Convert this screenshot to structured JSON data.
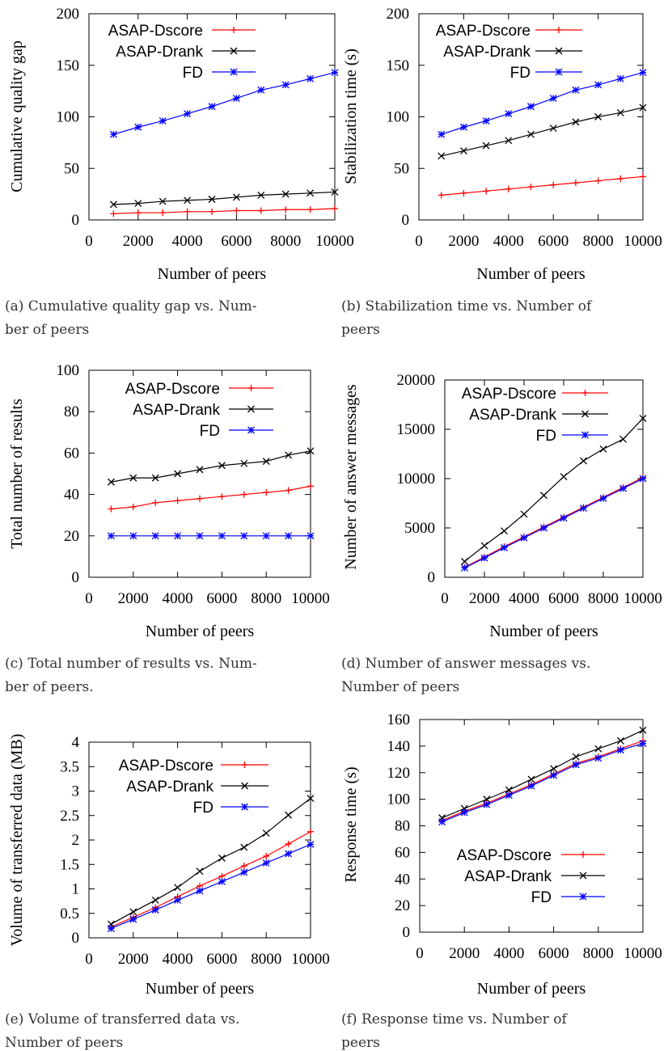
{
  "colors": {
    "ASAP-Dscore": "#ff0000",
    "ASAP-Drank": "#000000",
    "FD": "#0000ff",
    "markers": {
      "ASAP-Dscore": "plus",
      "ASAP-Drank": "cross",
      "FD": "star"
    }
  },
  "chart_data": [
    {
      "type": "line",
      "xlabel": "Number of peers",
      "ylabel": "Cumulative quality gap",
      "xlim": [
        0,
        10000
      ],
      "ylim": [
        0,
        200
      ],
      "xticks": [
        "0",
        "2000",
        "4000",
        "6000",
        "8000",
        "10000"
      ],
      "yticks": [
        "0",
        "50",
        "100",
        "150",
        "200"
      ],
      "legend": "top-left",
      "x": [
        1000,
        2000,
        3000,
        4000,
        5000,
        6000,
        7000,
        8000,
        9000,
        10000
      ],
      "series": [
        {
          "name": "ASAP-Dscore",
          "values": [
            6,
            7,
            7,
            8,
            8,
            9,
            9,
            10,
            10,
            11
          ]
        },
        {
          "name": "ASAP-Drank",
          "values": [
            15,
            16,
            18,
            19,
            20,
            22,
            24,
            25,
            26,
            27
          ]
        },
        {
          "name": "FD",
          "values": [
            83,
            90,
            96,
            103,
            110,
            118,
            126,
            131,
            137,
            143
          ]
        }
      ],
      "caption": [
        "(a) Cumulative quality gap vs. Num-",
        "ber of peers"
      ]
    },
    {
      "type": "line",
      "xlabel": "Number of peers",
      "ylabel": "Stabilization time (s)",
      "xlim": [
        0,
        10000
      ],
      "ylim": [
        0,
        200
      ],
      "xticks": [
        "0",
        "2000",
        "4000",
        "6000",
        "8000",
        "10000"
      ],
      "yticks": [
        "0",
        "50",
        "100",
        "150",
        "200"
      ],
      "legend": "top-left",
      "x": [
        1000,
        2000,
        3000,
        4000,
        5000,
        6000,
        7000,
        8000,
        9000,
        10000
      ],
      "series": [
        {
          "name": "ASAP-Dscore",
          "values": [
            24,
            26,
            28,
            30,
            32,
            34,
            36,
            38,
            40,
            42
          ]
        },
        {
          "name": "ASAP-Drank",
          "values": [
            62,
            67,
            72,
            77,
            83,
            89,
            95,
            100,
            104,
            109
          ]
        },
        {
          "name": "FD",
          "values": [
            83,
            90,
            96,
            103,
            110,
            118,
            126,
            131,
            137,
            143
          ]
        }
      ],
      "caption": [
        "(b) Stabilization time vs. Number of",
        "peers"
      ]
    },
    {
      "type": "line",
      "xlabel": "Number of peers",
      "ylabel": "Total number of results",
      "xlim": [
        0,
        10000
      ],
      "ylim": [
        0,
        100
      ],
      "xticks": [
        "0",
        "2000",
        "4000",
        "6000",
        "8000",
        "10000"
      ],
      "yticks": [
        "0",
        "20",
        "40",
        "60",
        "80",
        "100"
      ],
      "legend": "top-right",
      "x": [
        1000,
        2000,
        3000,
        4000,
        5000,
        6000,
        7000,
        8000,
        9000,
        10000
      ],
      "series": [
        {
          "name": "ASAP-Dscore",
          "values": [
            33,
            34,
            36,
            37,
            38,
            39,
            40,
            41,
            42,
            44
          ]
        },
        {
          "name": "ASAP-Drank",
          "values": [
            46,
            48,
            48,
            50,
            52,
            54,
            55,
            56,
            59,
            61
          ]
        },
        {
          "name": "FD",
          "values": [
            20,
            20,
            20,
            20,
            20,
            20,
            20,
            20,
            20,
            20
          ]
        }
      ],
      "caption": [
        "(c) Total number of results vs. Num-",
        "ber of peers."
      ]
    },
    {
      "type": "line",
      "xlabel": "Number of peers",
      "ylabel": "Number of answer messages",
      "xlim": [
        0,
        10000
      ],
      "ylim": [
        0,
        20000
      ],
      "xticks": [
        "0",
        "2000",
        "4000",
        "6000",
        "8000",
        "10000"
      ],
      "yticks": [
        "0",
        "5000",
        "10000",
        "15000",
        "20000"
      ],
      "legend": "top-left",
      "x": [
        1000,
        2000,
        3000,
        4000,
        5000,
        6000,
        7000,
        8000,
        9000,
        10000
      ],
      "series": [
        {
          "name": "ASAP-Dscore",
          "values": [
            1000,
            2050,
            3100,
            4100,
            5100,
            6100,
            7100,
            8100,
            9100,
            10100
          ]
        },
        {
          "name": "ASAP-Drank",
          "values": [
            1600,
            3200,
            4700,
            6400,
            8300,
            10200,
            11800,
            13000,
            14000,
            16100
          ]
        },
        {
          "name": "FD",
          "values": [
            950,
            1950,
            3000,
            4000,
            5000,
            6000,
            7000,
            8000,
            9000,
            10000
          ]
        }
      ],
      "caption": [
        "(d) Number of answer messages vs.",
        "Number of peers"
      ]
    },
    {
      "type": "line",
      "xlabel": "Number of peers",
      "ylabel": "Volume of transferred data (MB)",
      "xlim": [
        0,
        10000
      ],
      "ylim": [
        0,
        4
      ],
      "xticks": [
        "0",
        "2000",
        "4000",
        "6000",
        "8000",
        "10000"
      ],
      "yticks": [
        "0",
        "0.5",
        "1",
        "1.5",
        "2",
        "2.5",
        "3",
        "3.5",
        "4"
      ],
      "legend": "top-left",
      "x": [
        1000,
        2000,
        3000,
        4000,
        5000,
        6000,
        7000,
        8000,
        9000,
        10000
      ],
      "series": [
        {
          "name": "ASAP-Dscore",
          "values": [
            0.22,
            0.42,
            0.62,
            0.84,
            1.06,
            1.26,
            1.47,
            1.67,
            1.92,
            2.17
          ]
        },
        {
          "name": "ASAP-Drank",
          "values": [
            0.28,
            0.53,
            0.77,
            1.03,
            1.36,
            1.63,
            1.85,
            2.14,
            2.51,
            2.85
          ]
        },
        {
          "name": "FD",
          "values": [
            0.19,
            0.38,
            0.57,
            0.77,
            0.96,
            1.15,
            1.34,
            1.53,
            1.72,
            1.91
          ]
        }
      ],
      "caption": [
        "(e) Volume of transferred data vs.",
        "Number of peers"
      ]
    },
    {
      "type": "line",
      "xlabel": "Number of peers",
      "ylabel": "Response time (s)",
      "xlim": [
        0,
        10000
      ],
      "ylim": [
        0,
        160
      ],
      "xticks": [
        "0",
        "2000",
        "4000",
        "6000",
        "8000",
        "10000"
      ],
      "yticks": [
        "0",
        "20",
        "40",
        "60",
        "80",
        "100",
        "120",
        "140",
        "160"
      ],
      "legend": "bottom-right",
      "x": [
        1000,
        2000,
        3000,
        4000,
        5000,
        6000,
        7000,
        8000,
        9000,
        10000
      ],
      "series": [
        {
          "name": "ASAP-Dscore",
          "values": [
            84,
            91,
            97,
            104,
            111,
            119,
            127,
            132,
            138,
            144
          ]
        },
        {
          "name": "ASAP-Drank",
          "values": [
            86,
            93,
            100,
            107,
            115,
            123,
            132,
            138,
            144,
            152
          ]
        },
        {
          "name": "FD",
          "values": [
            83,
            90,
            96,
            103,
            110,
            118,
            126,
            131,
            137,
            142
          ]
        }
      ],
      "caption": [
        "(f) Response time vs. Number of",
        "peers"
      ]
    }
  ]
}
